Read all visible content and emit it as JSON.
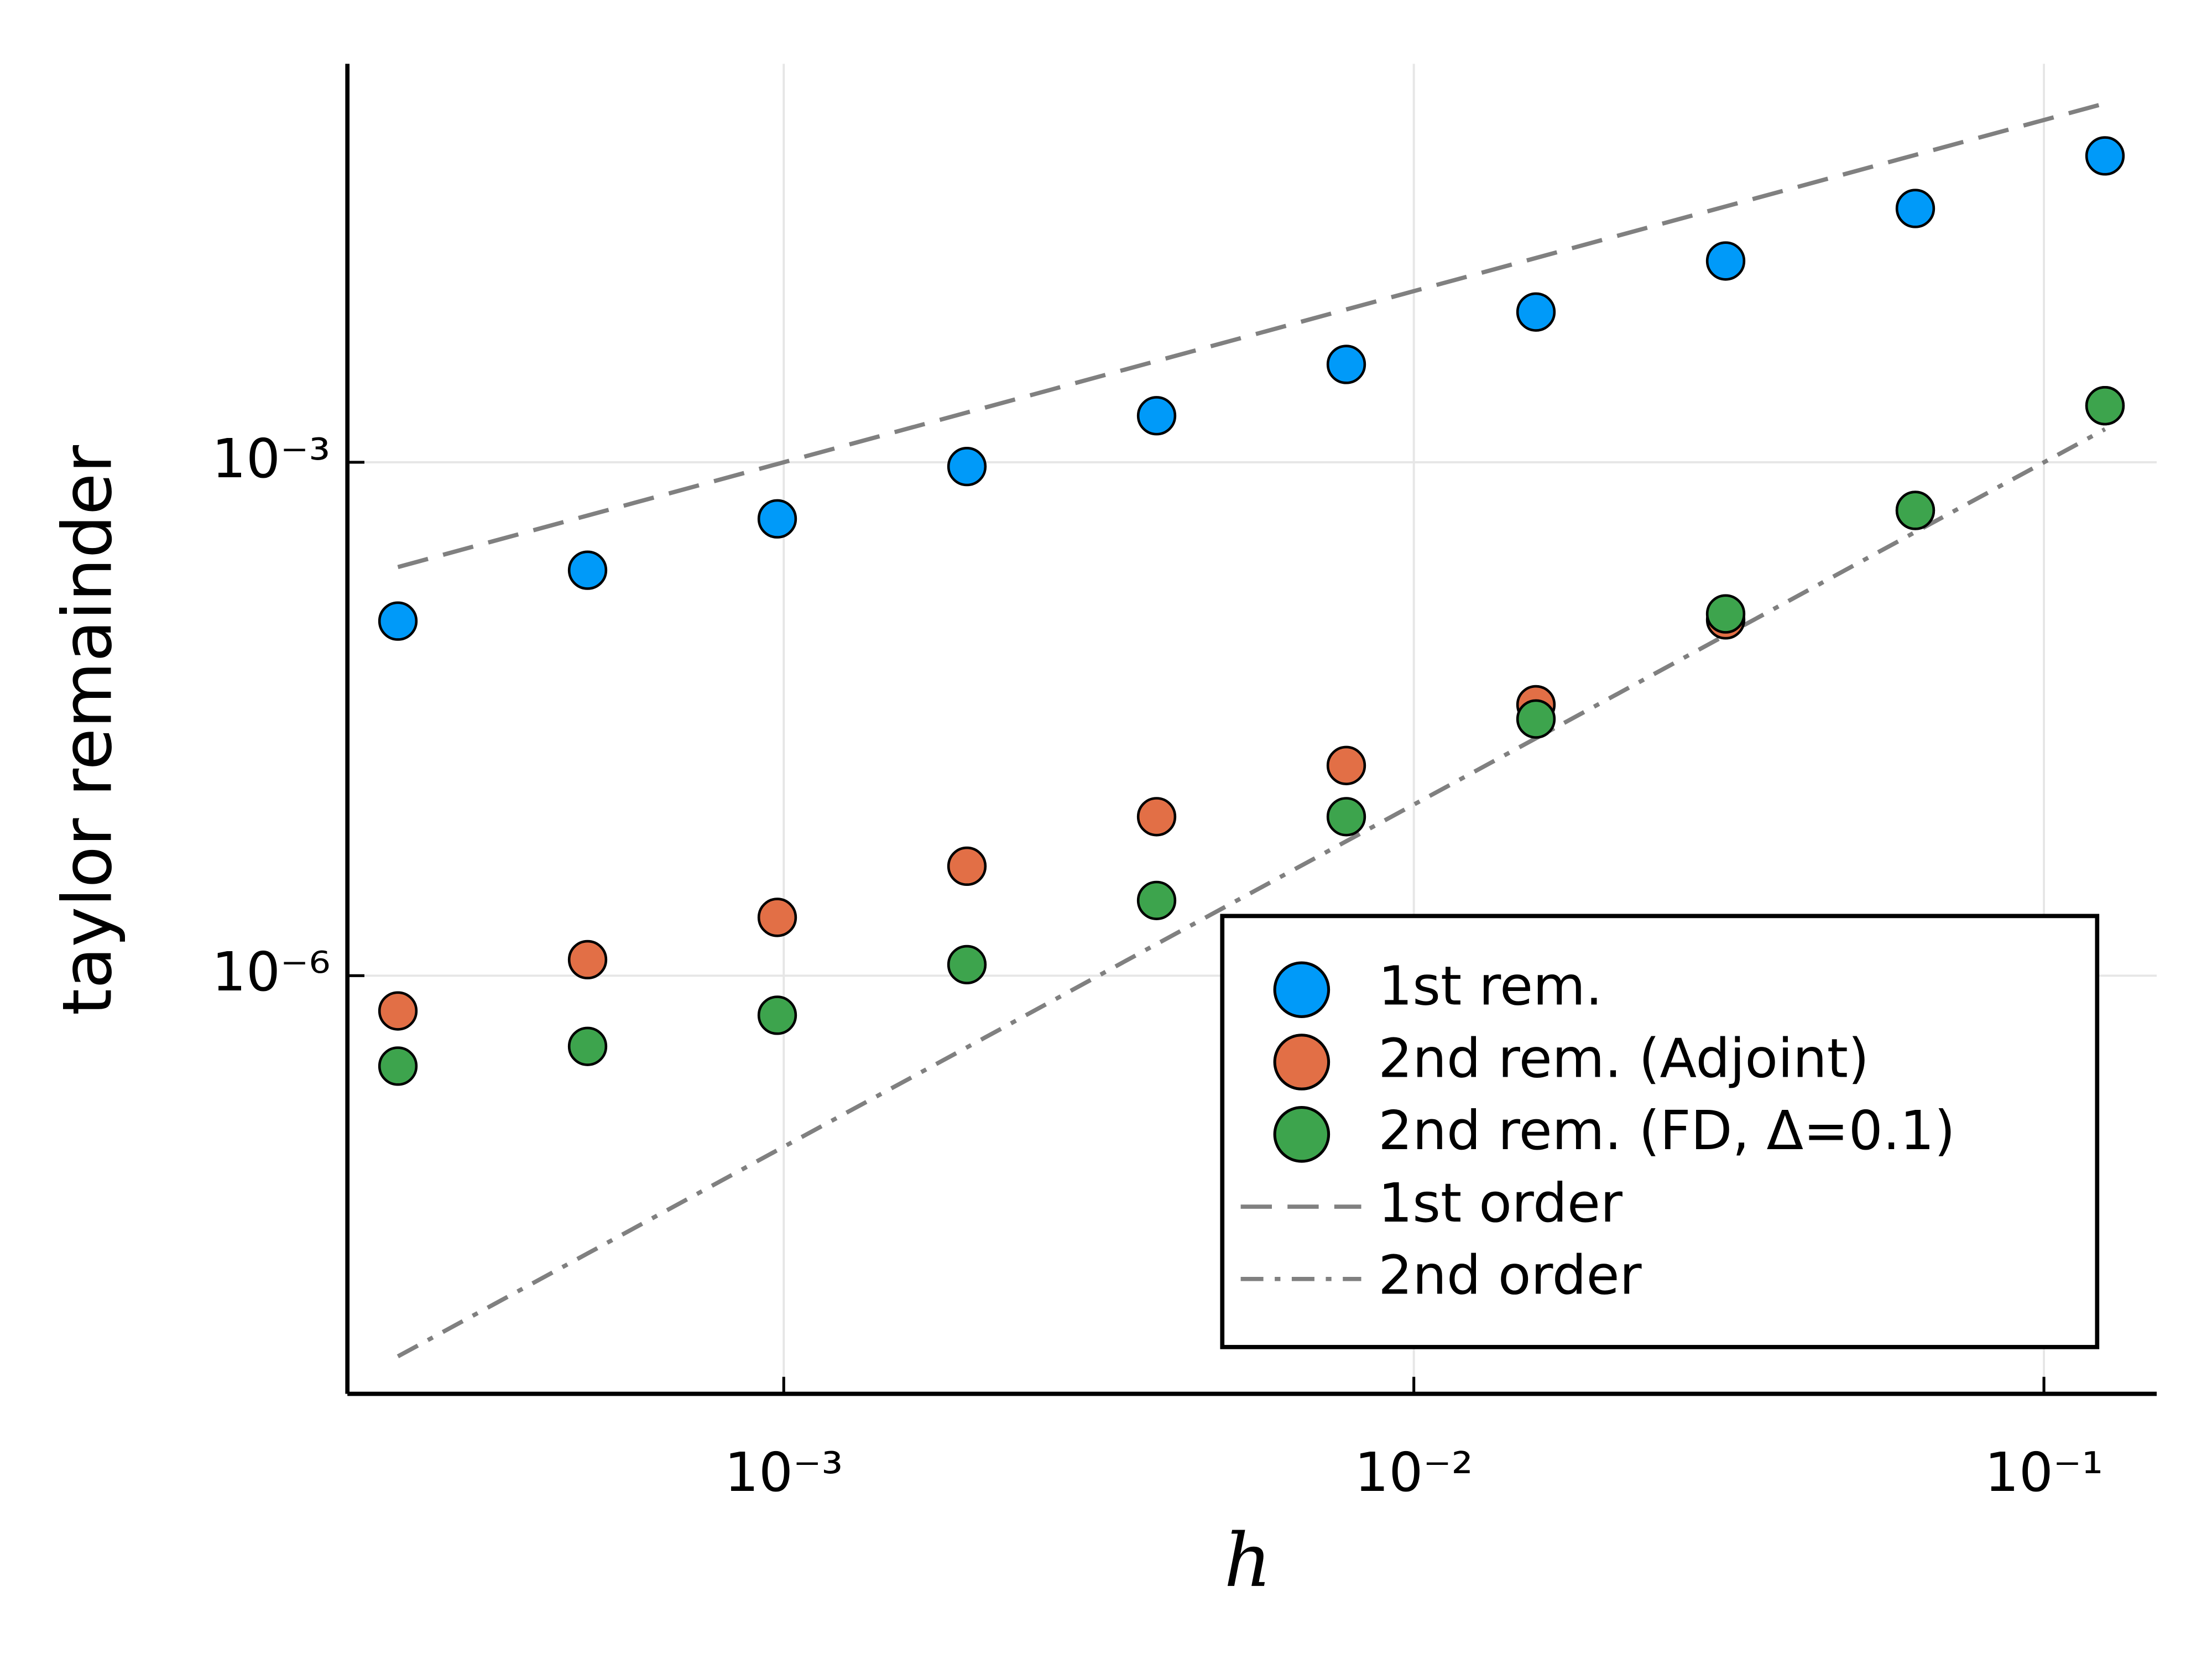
{
  "chart_data": {
    "type": "scatter",
    "xlabel": "h",
    "ylabel": "taylor remainder",
    "x_log": true,
    "y_log": true,
    "grid": true,
    "legend_position": "bottom right",
    "x": [
      0.000244140625,
      0.00048828125,
      0.0009765625,
      0.001953125,
      0.00390625,
      0.0078125,
      0.015625,
      0.03125,
      0.0625,
      0.125
    ],
    "series": [
      {
        "name": "1st rem.",
        "color": "#009af9",
        "style": "marker",
        "values": [
          0.000118,
          0.000234,
          0.000467,
          0.000944,
          0.00187,
          0.00373,
          0.00755,
          0.015,
          0.0304,
          0.0617
        ]
      },
      {
        "name": "2nd rem. (Adjoint)",
        "color": "#e26f46",
        "style": "marker",
        "values": [
          6.22e-07,
          1.24e-06,
          2.19e-06,
          4.36e-06,
          8.49e-06,
          1.69e-05,
          3.83e-05,
          0.00012,
          0.000523,
          0.00214
        ]
      },
      {
        "name": "2nd rem. (FD, Δ=0.1)",
        "color": "#3da44d",
        "style": "marker",
        "values": [
          2.96e-07,
          3.86e-07,
          5.87e-07,
          1.16e-06,
          2.75e-06,
          8.49e-06,
          3.16e-05,
          0.00013,
          0.000523,
          0.00214
        ]
      },
      {
        "name": "1st order",
        "color": "#808080",
        "style": "dash",
        "values": [
          0.000244140625,
          0.00048828125,
          0.0009765625,
          0.001953125,
          0.00390625,
          0.0078125,
          0.015625,
          0.03125,
          0.0625,
          0.125
        ]
      },
      {
        "name": "2nd order",
        "color": "#808080",
        "style": "dashdot",
        "values": [
          5.96e-09,
          2.38e-08,
          9.54e-08,
          3.81e-07,
          1.53e-06,
          6.1e-06,
          2.44e-05,
          9.77e-05,
          0.000391,
          0.00156
        ]
      }
    ],
    "xlim": [
      0.000203,
      0.151
    ],
    "ylim": [
      3.6e-09,
      0.213
    ],
    "xticks": [
      {
        "value": 0.001,
        "label": "10⁻³"
      },
      {
        "value": 0.01,
        "label": "10⁻²"
      },
      {
        "value": 0.1,
        "label": "10⁻¹"
      }
    ],
    "yticks": [
      {
        "value": 1e-06,
        "label": "10⁻⁶"
      },
      {
        "value": 0.001,
        "label": "10⁻³"
      }
    ]
  }
}
